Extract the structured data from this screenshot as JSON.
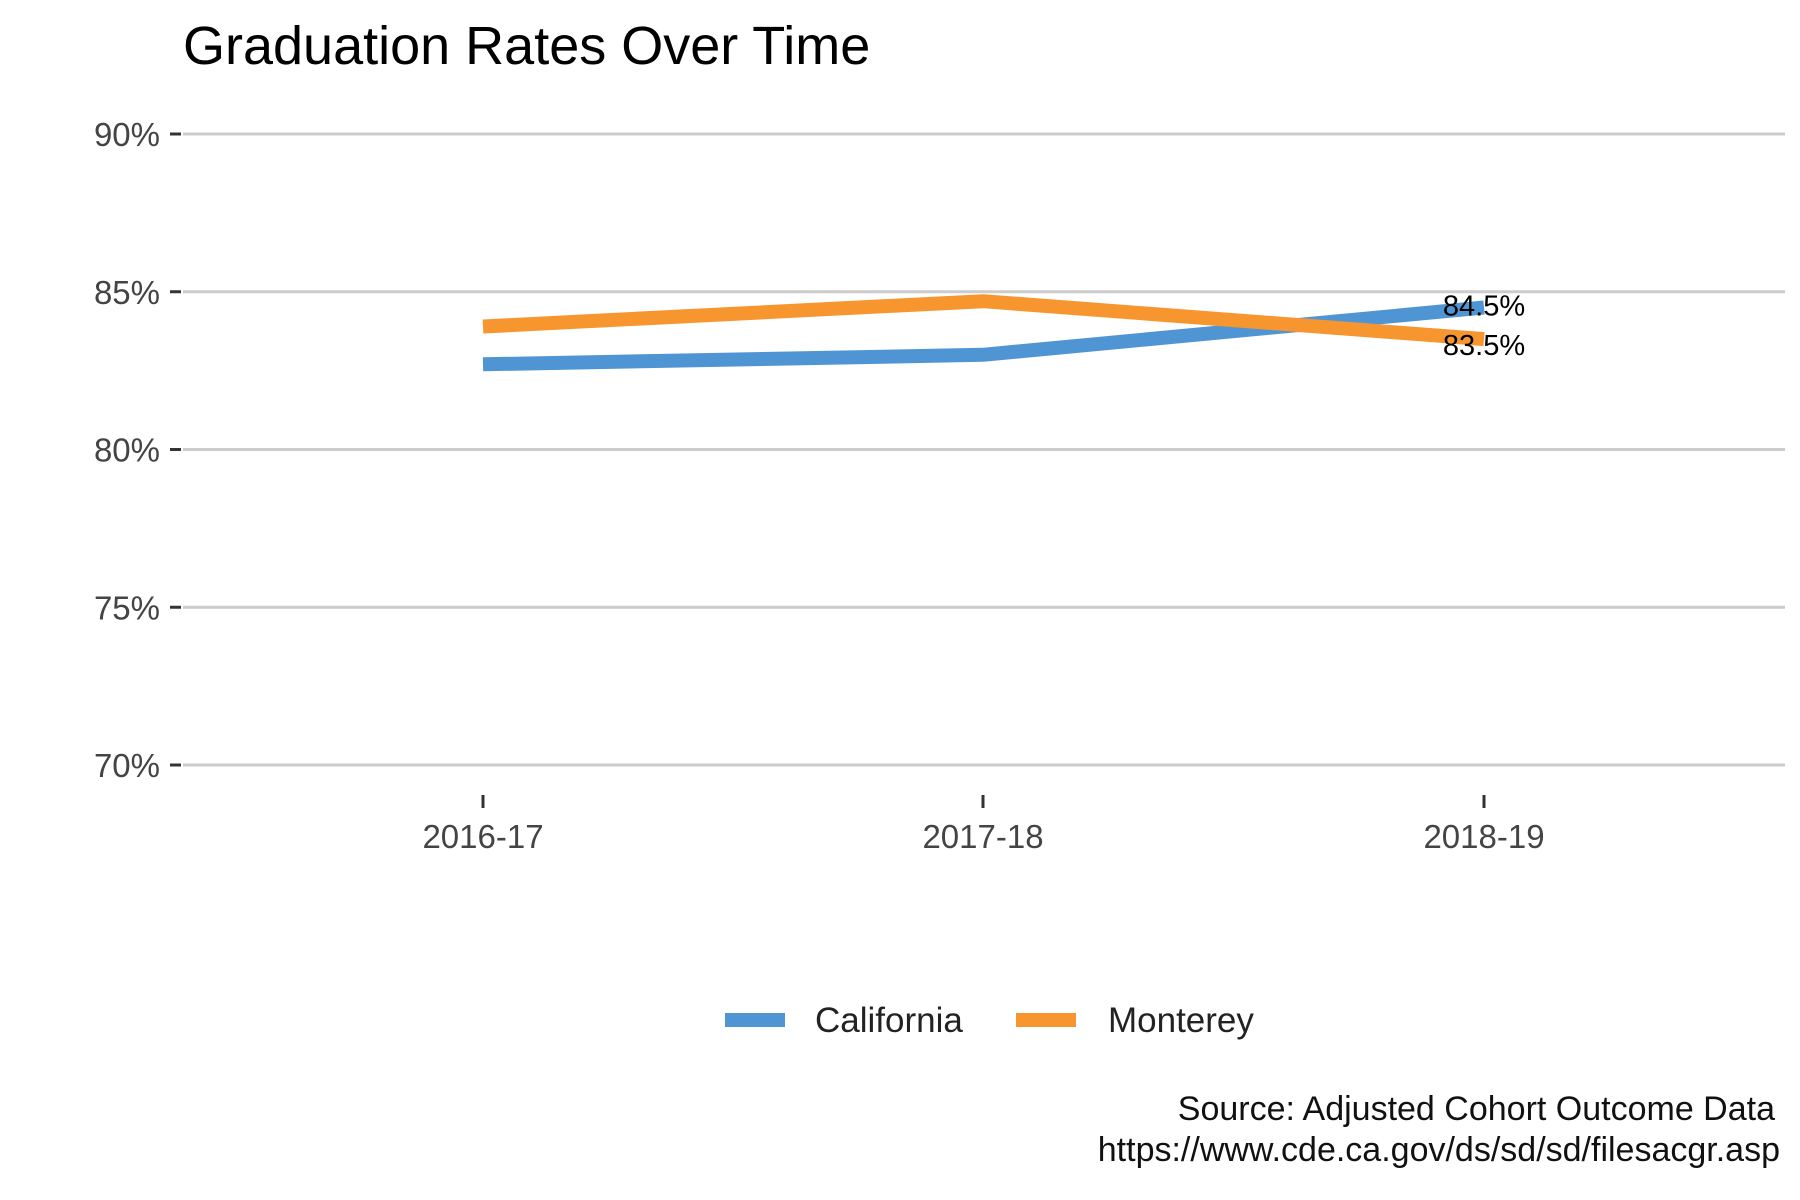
{
  "chart_data": {
    "type": "line",
    "title": "Graduation Rates Over Time",
    "xlabel": "",
    "ylabel": "",
    "categories": [
      "2016-17",
      "2017-18",
      "2018-19"
    ],
    "ylim": [
      70,
      90
    ],
    "y_ticks": [
      70,
      75,
      80,
      85,
      90
    ],
    "y_tick_labels": [
      "70%",
      "75%",
      "80%",
      "85%",
      "90%"
    ],
    "grid": "horizontal",
    "legend_position": "bottom",
    "series": [
      {
        "name": "California",
        "color": "#5095d3",
        "values": [
          82.7,
          83.0,
          84.5
        ],
        "end_label": "84.5%"
      },
      {
        "name": "Monterey",
        "color": "#f7962f",
        "values": [
          83.9,
          84.7,
          83.5
        ],
        "end_label": "83.5%"
      }
    ],
    "caption": [
      "Source: Adjusted Cohort Outcome Data",
      "https://www.cde.ca.gov/ds/sd/sd/filesacgr.asp"
    ]
  }
}
